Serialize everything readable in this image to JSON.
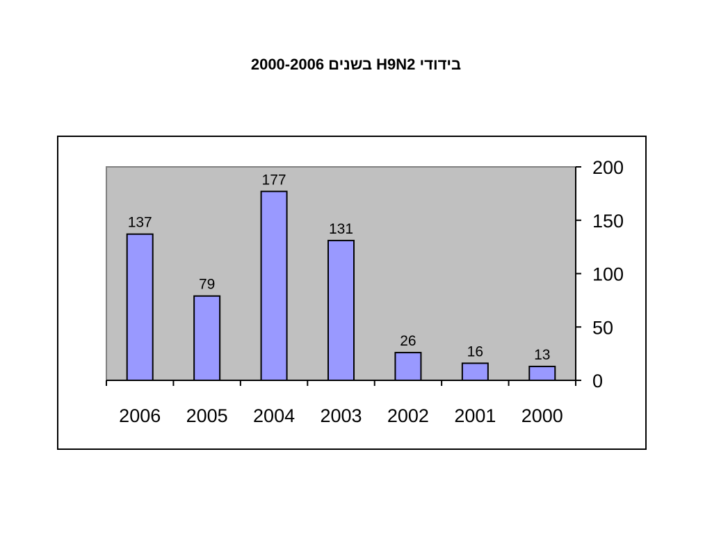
{
  "title": "בידודי  H9N2 בשנים 2000-2006",
  "chart_data": {
    "type": "bar",
    "categories": [
      "2006",
      "2005",
      "2004",
      "2003",
      "2002",
      "2001",
      "2000"
    ],
    "values": [
      137,
      79,
      177,
      131,
      26,
      16,
      13
    ],
    "ylim": [
      0,
      200
    ],
    "yticks": [
      0,
      50,
      100,
      150,
      200
    ],
    "y_axis_position": "right",
    "grid": false,
    "legend": "none",
    "data_labels": true
  },
  "colors": {
    "bar_fill": "#9999ff",
    "plot_background": "#c0c0c0",
    "plot_border": "#808080",
    "axis": "#000000"
  }
}
